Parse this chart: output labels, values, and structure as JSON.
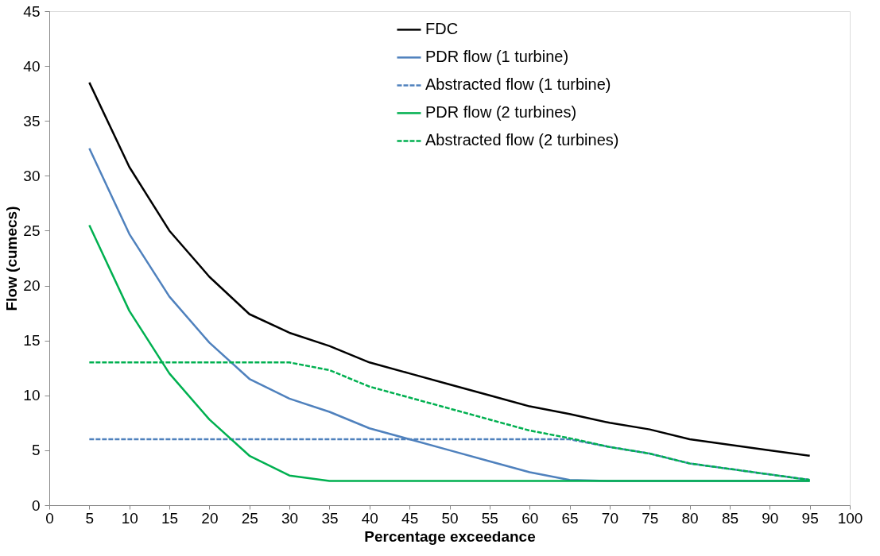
{
  "chart_data": {
    "type": "line",
    "xlabel": "Percentage exceedance",
    "ylabel": "Flow (cumecs)",
    "x": [
      5,
      10,
      15,
      20,
      25,
      30,
      35,
      40,
      45,
      50,
      55,
      60,
      65,
      70,
      75,
      80,
      85,
      90,
      95
    ],
    "xlim": [
      0,
      100
    ],
    "xticks": [
      0,
      5,
      10,
      15,
      20,
      25,
      30,
      35,
      40,
      45,
      50,
      55,
      60,
      65,
      70,
      75,
      80,
      85,
      90,
      95,
      100
    ],
    "ylim": [
      0,
      45
    ],
    "yticks": [
      0,
      5,
      10,
      15,
      20,
      25,
      30,
      35,
      40,
      45
    ],
    "grid": false,
    "legend": "top",
    "marker": "none",
    "series": [
      {
        "name": "FDC",
        "color": "#000000",
        "line_style": "solid",
        "values": [
          38.5,
          30.8,
          25,
          20.8,
          17.4,
          15.7,
          14.5,
          13,
          12,
          11,
          10,
          9,
          8.3,
          7.5,
          6.9,
          6,
          5.5,
          5,
          4.5
        ]
      },
      {
        "name": "PDR flow (1 turbine)",
        "color": "#4f81bd",
        "line_style": "solid",
        "values": [
          32.5,
          24.7,
          19,
          14.8,
          11.5,
          9.7,
          8.5,
          7,
          6,
          5,
          4,
          3,
          2.3,
          2.2,
          2.2,
          2.2,
          2.2,
          2.2,
          2.2
        ]
      },
      {
        "name": "Abstracted flow (1 turbine)",
        "color": "#4f81bd",
        "line_style": "dashed",
        "values": [
          6,
          6,
          6,
          6,
          6,
          6,
          6,
          6,
          6,
          6,
          6,
          6,
          6,
          5.3,
          4.7,
          3.8,
          3.3,
          2.8,
          2.3
        ]
      },
      {
        "name": "PDR flow (2 turbines)",
        "color": "#00b050",
        "line_style": "solid",
        "values": [
          25.5,
          17.7,
          12,
          7.8,
          4.5,
          2.7,
          2.2,
          2.2,
          2.2,
          2.2,
          2.2,
          2.2,
          2.2,
          2.2,
          2.2,
          2.2,
          2.2,
          2.2,
          2.2
        ]
      },
      {
        "name": "Abstracted flow (2 turbines)",
        "color": "#00b050",
        "line_style": "dashed",
        "values": [
          13,
          13,
          13,
          13,
          13,
          13,
          12.3,
          10.8,
          9.8,
          8.8,
          7.8,
          6.8,
          6.1,
          5.3,
          4.7,
          3.8,
          3.3,
          2.8,
          2.3
        ]
      }
    ]
  }
}
